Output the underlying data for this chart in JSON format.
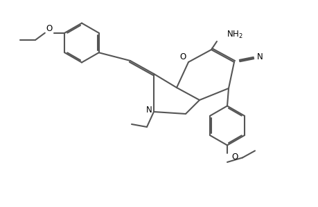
{
  "bg_color": "#ffffff",
  "line_color": "#555555",
  "line_width": 1.5,
  "dbo": 0.022,
  "figsize": [
    4.6,
    3.0
  ],
  "dpi": 100,
  "xlim": [
    0,
    4.6
  ],
  "ylim": [
    0,
    3.0
  ]
}
